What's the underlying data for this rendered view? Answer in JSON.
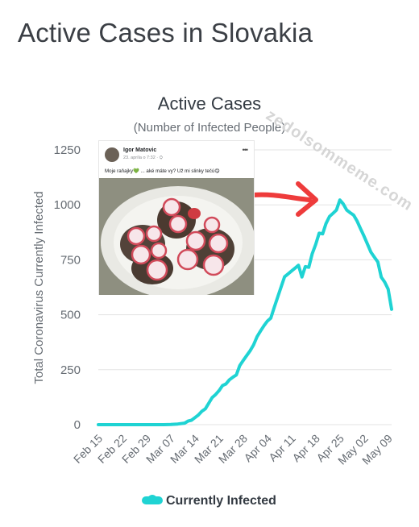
{
  "page_title": "Active Cases in Slovakia",
  "watermark": "zedolsommeme.com",
  "post": {
    "author": "Igor Matovic",
    "meta": "23. apríla o 7:32 · ⛭",
    "text": "Moje raňajky💚 ... aké máte vy? Už mi slinky tečú😋"
  },
  "colors": {
    "series": "#1fd3d3",
    "arrow": "#ee3b3b",
    "grid": "#e3e3e3"
  },
  "chart_data": {
    "type": "line",
    "title": "Active Cases",
    "subtitle": "(Number of Infected People)",
    "ylabel": "Total Coronavirus Currently Infected",
    "xlabel": "",
    "ylim": [
      0,
      1250
    ],
    "yticks": [
      0,
      250,
      500,
      750,
      1000,
      1250
    ],
    "xticks": [
      "Feb 15",
      "Feb 22",
      "Feb 29",
      "Mar 07",
      "Mar 14",
      "Mar 21",
      "Mar 28",
      "Apr 04",
      "Apr 11",
      "Apr 18",
      "Apr 25",
      "May 02",
      "May 09"
    ],
    "grid": true,
    "legend": "bottom-center",
    "series": [
      {
        "name": "Currently Infected",
        "x": [
          "Feb 15",
          "Feb 22",
          "Feb 29",
          "Mar 05",
          "Mar 07",
          "Mar 09",
          "Mar 11",
          "Mar 12",
          "Mar 13",
          "Mar 14",
          "Mar 15",
          "Mar 16",
          "Mar 17",
          "Mar 18",
          "Mar 19",
          "Mar 20",
          "Mar 21",
          "Mar 22",
          "Mar 23",
          "Mar 24",
          "Mar 25",
          "Mar 26",
          "Mar 27",
          "Mar 28",
          "Mar 29",
          "Mar 30",
          "Mar 31",
          "Apr 01",
          "Apr 02",
          "Apr 03",
          "Apr 04",
          "Apr 05",
          "Apr 06",
          "Apr 07",
          "Apr 08",
          "Apr 09",
          "Apr 10",
          "Apr 11",
          "Apr 12",
          "Apr 13",
          "Apr 14",
          "Apr 15",
          "Apr 16",
          "Apr 17",
          "Apr 18",
          "Apr 19",
          "Apr 20",
          "Apr 21",
          "Apr 22",
          "Apr 23",
          "Apr 24",
          "Apr 25",
          "Apr 26",
          "Apr 27",
          "Apr 28",
          "Apr 29",
          "Apr 30",
          "May 01",
          "May 02",
          "May 03",
          "May 04",
          "May 05",
          "May 06",
          "May 07",
          "May 08",
          "May 09",
          "May 10"
        ],
        "values": [
          0,
          0,
          0,
          0,
          1,
          3,
          7,
          16,
          20,
          32,
          44,
          61,
          72,
          97,
          123,
          137,
          155,
          178,
          185,
          204,
          216,
          226,
          269,
          292,
          314,
          336,
          363,
          400,
          426,
          450,
          471,
          485,
          534,
          581,
          628,
          673,
          686,
          699,
          712,
          725,
          672,
          719,
          716,
          778,
          820,
          871,
          868,
          915,
          947,
          961,
          976,
          1022,
          1004,
          976,
          964,
          953,
          926,
          891,
          858,
          822,
          785,
          762,
          740,
          671,
          649,
          617,
          525
        ]
      }
    ]
  }
}
